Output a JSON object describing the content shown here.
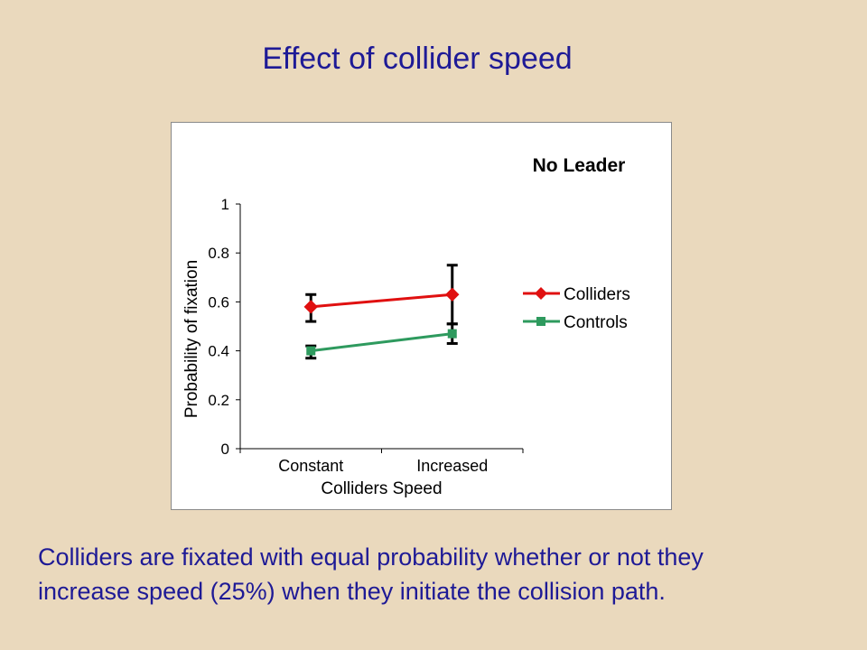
{
  "slide": {
    "title": "Effect of collider speed",
    "caption_lines": [
      "Colliders are fixated with equal probability whether or not they",
      "increase speed (25%) when  they initiate the collision path."
    ]
  },
  "chart_data": {
    "type": "line",
    "annotation": "No Leader",
    "xlabel": "Colliders Speed",
    "ylabel": "Probability of fixation",
    "categories": [
      "Constant",
      "Increased"
    ],
    "ylim": [
      0,
      1
    ],
    "yticks": [
      0,
      0.2,
      0.4,
      0.6,
      0.8,
      1
    ],
    "ytick_labels": [
      "0",
      "0.2",
      "0.4",
      "0.6",
      "0.8",
      "1"
    ],
    "grid": false,
    "legend_position": "right",
    "series": [
      {
        "name": "Colliders",
        "color": "#e01010",
        "marker": "diamond",
        "values": [
          0.58,
          0.63
        ],
        "err_low": [
          0.52,
          0.51
        ],
        "err_high": [
          0.63,
          0.75
        ]
      },
      {
        "name": "Controls",
        "color": "#2e9a5e",
        "marker": "square",
        "values": [
          0.4,
          0.47
        ],
        "err_low": [
          0.37,
          0.43
        ],
        "err_high": [
          0.42,
          0.51
        ]
      }
    ]
  }
}
